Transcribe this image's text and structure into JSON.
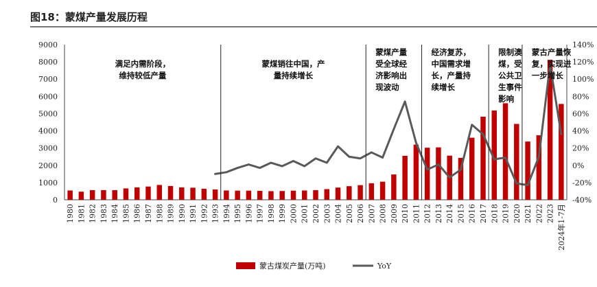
{
  "figure_title": "图18：蒙煤产量发展历程",
  "chart_data": {
    "type": "bar",
    "categories": [
      "1980",
      "1981",
      "1982",
      "1983",
      "1984",
      "1985",
      "1986",
      "1987",
      "1988",
      "1989",
      "1990",
      "1991",
      "1992",
      "1993",
      "1994",
      "1995",
      "1996",
      "1997",
      "1998",
      "1999",
      "2000",
      "2001",
      "2002",
      "2003",
      "2004",
      "2005",
      "2006",
      "2007",
      "2008",
      "2009",
      "2010",
      "2011",
      "2012",
      "2013",
      "2014",
      "2015",
      "2016",
      "2017",
      "2018",
      "2019",
      "2020",
      "2021",
      "2022",
      "2023",
      "2024年1-7月"
    ],
    "series": [
      {
        "name": "蒙古煤炭产量(万吨)",
        "type": "bar",
        "axis": "left",
        "color": "#c00000",
        "values": [
          540,
          470,
          560,
          560,
          560,
          660,
          720,
          770,
          860,
          800,
          720,
          700,
          640,
          600,
          540,
          530,
          530,
          520,
          500,
          510,
          530,
          540,
          560,
          620,
          710,
          790,
          850,
          960,
          1050,
          1470,
          2550,
          3200,
          3020,
          3040,
          2560,
          2430,
          3600,
          4820,
          5180,
          5600,
          4400,
          3380,
          3740,
          8120,
          5560
        ]
      },
      {
        "name": "YoY",
        "type": "line",
        "axis": "right",
        "color": "#595959",
        "values": [
          null,
          null,
          null,
          null,
          null,
          null,
          null,
          null,
          null,
          null,
          null,
          null,
          null,
          -10,
          -8,
          -3,
          1,
          -3,
          3,
          -1,
          5,
          -1,
          8,
          3,
          22,
          10,
          8,
          15,
          9,
          42,
          74,
          26,
          -5,
          1,
          -14,
          -5,
          47,
          36,
          7,
          9,
          -21,
          -23,
          10,
          117,
          36
        ]
      }
    ],
    "ylim_left": [
      0,
      9000
    ],
    "yticks_left": [
      "0",
      "1000",
      "2000",
      "3000",
      "4000",
      "5000",
      "6000",
      "7000",
      "8000",
      "9000"
    ],
    "ylim_right": [
      -40,
      140
    ],
    "yticks_right": [
      "-40%",
      "-20%",
      "0%",
      "20%",
      "40%",
      "60%",
      "80%",
      "100%",
      "120%",
      "140%"
    ],
    "phase_dividers_after": [
      "1993",
      "2006",
      "2011",
      "2017",
      "2020"
    ],
    "annotations": [
      {
        "lines": [
          "满足内需阶段，",
          "维持较低产量"
        ]
      },
      {
        "lines": [
          "蒙煤销往中国，产",
          "量持续增长"
        ]
      },
      {
        "lines": [
          "蒙煤产量",
          "受全球经",
          "济影响出",
          "现波动"
        ]
      },
      {
        "lines": [
          "经济复苏，",
          "中国需求增",
          "长，产量持",
          "续增长"
        ]
      },
      {
        "lines": [
          "限制澳",
          "煤，受",
          "公共卫",
          "生事件",
          "影响"
        ]
      },
      {
        "lines": [
          "蒙古产量恢",
          "复，实现进",
          "一步增长"
        ]
      }
    ],
    "legend": {
      "position": "bottom"
    }
  }
}
